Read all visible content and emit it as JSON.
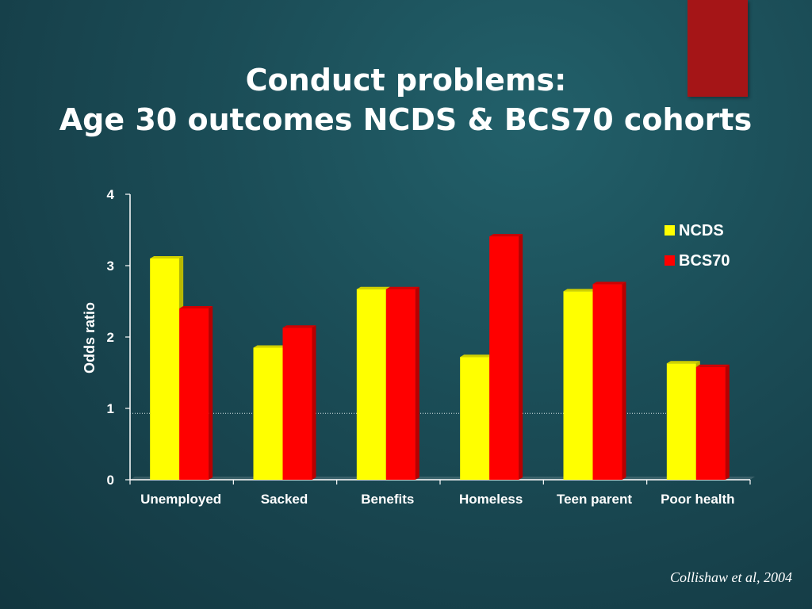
{
  "title": {
    "line1": "Conduct problems:",
    "line2": "Age 30 outcomes NCDS & BCS70 cohorts"
  },
  "citation": "Collishaw et al, 2004",
  "colors": {
    "NCDS": "#ffff00",
    "BCS70": "#ff0000",
    "text": "#ffffff",
    "accent_tab": "#a51517"
  },
  "chart_data": {
    "type": "bar",
    "categories": [
      "Unemployed",
      "Sacked",
      "Benefits",
      "Homeless",
      "Teen parent",
      "Poor health"
    ],
    "series": [
      {
        "name": "NCDS",
        "values": [
          3.1,
          1.85,
          2.67,
          1.72,
          2.64,
          1.63
        ]
      },
      {
        "name": "BCS70",
        "values": [
          2.4,
          2.13,
          2.67,
          3.41,
          2.74,
          1.58
        ]
      }
    ],
    "ylabel": "Odds ratio",
    "xlabel": "",
    "ylim": [
      0,
      4
    ],
    "yticks": [
      0,
      1,
      2,
      3,
      4
    ],
    "reference_line": 0.93,
    "legend_position": "top-right",
    "grid": false
  }
}
